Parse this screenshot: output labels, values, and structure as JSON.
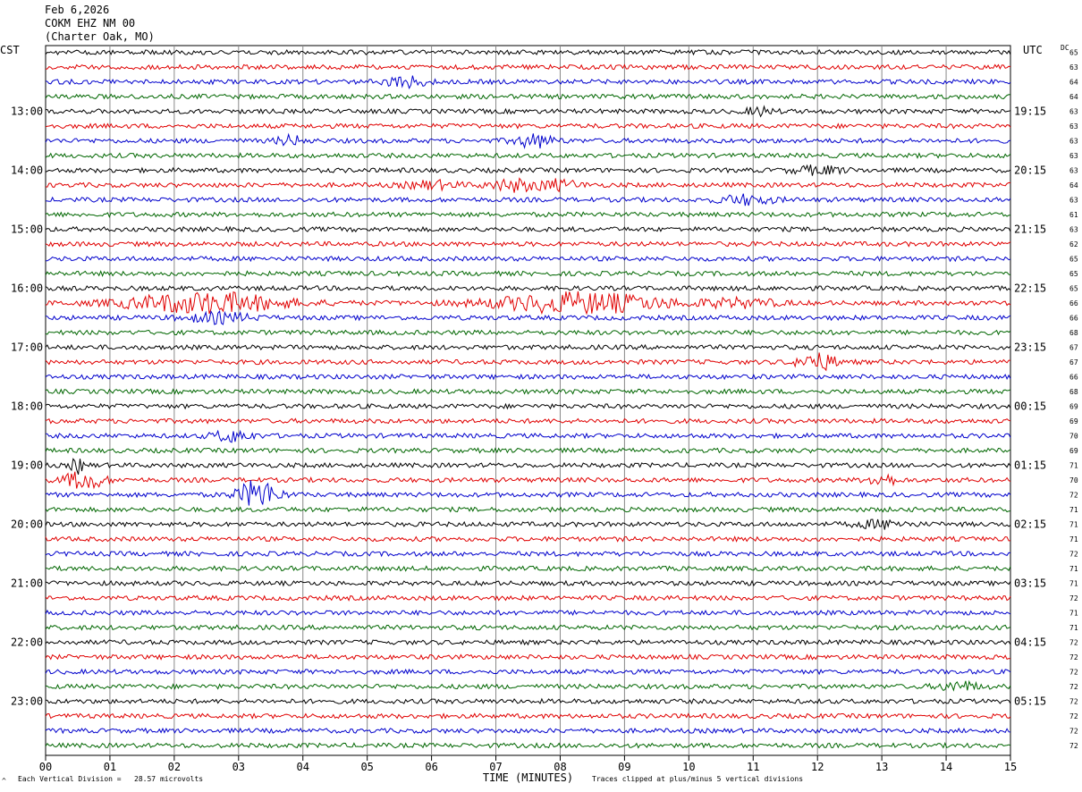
{
  "header": {
    "date": "Feb 6,2026",
    "station": "COKM EHZ NM 00",
    "location": "(Charter Oak, MO)"
  },
  "left_zone": "CST",
  "right_zone": "UTC",
  "dc_label": "DC",
  "footer": {
    "scale_note": "Each Vertical Division =   28.57 microvolts",
    "clip_note": "Traces clipped at plus/minus 5 vertical divisions",
    "corner_mark": "^"
  },
  "colors": {
    "trace_cycle": [
      "#000000",
      "#e00000",
      "#0000cc",
      "#006600"
    ],
    "grid": "#888888",
    "background": "#ffffff"
  },
  "chart_data": {
    "type": "line",
    "title": "",
    "xlabel": "TIME (MINUTES)",
    "xlim": [
      0,
      15
    ],
    "x_ticks": [
      "00",
      "01",
      "02",
      "03",
      "04",
      "05",
      "06",
      "07",
      "08",
      "09",
      "10",
      "11",
      "12",
      "13",
      "14",
      "15"
    ],
    "rows_per_hour": 4,
    "row_count": 48,
    "left_hour_labels": [
      {
        "row": 4,
        "label": "13:00"
      },
      {
        "row": 8,
        "label": "14:00"
      },
      {
        "row": 12,
        "label": "15:00"
      },
      {
        "row": 16,
        "label": "16:00"
      },
      {
        "row": 20,
        "label": "17:00"
      },
      {
        "row": 24,
        "label": "18:00"
      },
      {
        "row": 28,
        "label": "19:00"
      },
      {
        "row": 32,
        "label": "20:00"
      },
      {
        "row": 36,
        "label": "21:00"
      },
      {
        "row": 40,
        "label": "22:00"
      },
      {
        "row": 44,
        "label": "23:00"
      }
    ],
    "right_hour_labels": [
      {
        "row": 4,
        "label": "19:15"
      },
      {
        "row": 8,
        "label": "20:15"
      },
      {
        "row": 12,
        "label": "21:15"
      },
      {
        "row": 16,
        "label": "22:15"
      },
      {
        "row": 20,
        "label": "23:15"
      },
      {
        "row": 24,
        "label": "00:15"
      },
      {
        "row": 28,
        "label": "01:15"
      },
      {
        "row": 32,
        "label": "02:15"
      },
      {
        "row": 36,
        "label": "03:15"
      },
      {
        "row": 40,
        "label": "04:15"
      },
      {
        "row": 44,
        "label": "05:15"
      }
    ],
    "dc_offsets": [
      65,
      63,
      64,
      64,
      63,
      63,
      63,
      63,
      63,
      64,
      63,
      61,
      63,
      62,
      65,
      65,
      65,
      66,
      66,
      68,
      67,
      67,
      66,
      68,
      69,
      69,
      70,
      69,
      71,
      70,
      72,
      71,
      71,
      71,
      72,
      71,
      71,
      72,
      71,
      71,
      72,
      72,
      72,
      72,
      72,
      72,
      72,
      72
    ],
    "noise_amplitude": 2.6,
    "bursts": [
      {
        "row": 2,
        "x": 5.6,
        "w": 0.3,
        "amp": 6
      },
      {
        "row": 4,
        "x": 11.1,
        "w": 0.2,
        "amp": 4
      },
      {
        "row": 6,
        "x": 3.8,
        "w": 0.2,
        "amp": 5
      },
      {
        "row": 6,
        "x": 7.6,
        "w": 0.3,
        "amp": 7
      },
      {
        "row": 8,
        "x": 12.0,
        "w": 0.4,
        "amp": 4
      },
      {
        "row": 9,
        "x": 6.0,
        "w": 0.4,
        "amp": 4
      },
      {
        "row": 9,
        "x": 7.3,
        "w": 0.4,
        "amp": 6
      },
      {
        "row": 9,
        "x": 8.0,
        "w": 0.3,
        "amp": 5
      },
      {
        "row": 10,
        "x": 10.9,
        "w": 0.4,
        "amp": 5
      },
      {
        "row": 17,
        "x": 2.5,
        "w": 1.2,
        "amp": 11
      },
      {
        "row": 17,
        "x": 8.3,
        "w": 1.3,
        "amp": 11
      },
      {
        "row": 17,
        "x": 10.8,
        "w": 0.6,
        "amp": 4
      },
      {
        "row": 18,
        "x": 2.7,
        "w": 0.5,
        "amp": 5
      },
      {
        "row": 21,
        "x": 12.0,
        "w": 0.3,
        "amp": 9
      },
      {
        "row": 26,
        "x": 2.9,
        "w": 0.3,
        "amp": 6
      },
      {
        "row": 28,
        "x": 0.5,
        "w": 0.1,
        "amp": 8
      },
      {
        "row": 29,
        "x": 0.6,
        "w": 0.3,
        "amp": 10
      },
      {
        "row": 29,
        "x": 13.0,
        "w": 0.2,
        "amp": 7
      },
      {
        "row": 30,
        "x": 3.3,
        "w": 0.3,
        "amp": 16
      },
      {
        "row": 32,
        "x": 13.0,
        "w": 0.4,
        "amp": 4
      },
      {
        "row": 43,
        "x": 14.2,
        "w": 0.3,
        "amp": 5
      }
    ]
  }
}
